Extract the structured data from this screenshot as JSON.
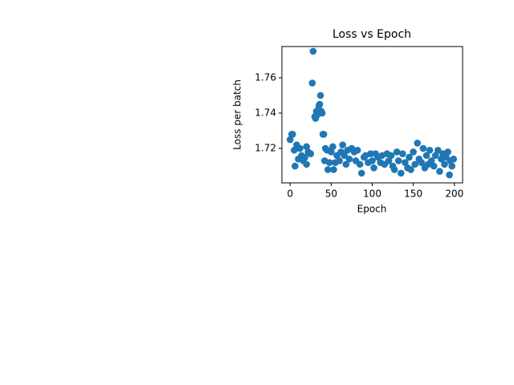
{
  "chart_data": {
    "type": "scatter",
    "title": "Loss vs Epoch",
    "x_label": "Epoch",
    "y_label": "Loss per batch",
    "xlim": [
      -10,
      210
    ],
    "ylim": [
      1.7005,
      1.7777
    ],
    "xticks": [
      0,
      50,
      100,
      150,
      200
    ],
    "yticks": [
      1.72,
      1.74,
      1.76
    ],
    "series": [
      {
        "color": "#1f77b4",
        "x": [
          0,
          2,
          3,
          5,
          6,
          8,
          10,
          12,
          14,
          16,
          18,
          20,
          20,
          22,
          25,
          27,
          28,
          30,
          31,
          32,
          33,
          35,
          36,
          37,
          38,
          39,
          40,
          41,
          42,
          43,
          45,
          46,
          48,
          50,
          52,
          53,
          55,
          57,
          60,
          62,
          64,
          66,
          68,
          70,
          72,
          75,
          78,
          80,
          82,
          85,
          87,
          90,
          92,
          95,
          98,
          100,
          102,
          104,
          107,
          110,
          112,
          115,
          118,
          120,
          123,
          125,
          127,
          130,
          132,
          135,
          137,
          140,
          143,
          145,
          147,
          150,
          152,
          155,
          157,
          160,
          162,
          164,
          166,
          168,
          170,
          172,
          175,
          177,
          180,
          182,
          184,
          186,
          188,
          190,
          192,
          194,
          195,
          197,
          199
        ],
        "values": [
          1.725,
          1.728,
          1.728,
          1.719,
          1.71,
          1.722,
          1.714,
          1.72,
          1.716,
          1.713,
          1.715,
          1.711,
          1.721,
          1.718,
          1.717,
          1.757,
          1.775,
          1.738,
          1.737,
          1.741,
          1.739,
          1.744,
          1.745,
          1.75,
          1.741,
          1.74,
          1.728,
          1.728,
          1.713,
          1.72,
          1.719,
          1.708,
          1.712,
          1.718,
          1.721,
          1.708,
          1.712,
          1.716,
          1.713,
          1.718,
          1.722,
          1.716,
          1.711,
          1.719,
          1.714,
          1.72,
          1.718,
          1.713,
          1.719,
          1.711,
          1.706,
          1.715,
          1.716,
          1.712,
          1.717,
          1.713,
          1.709,
          1.717,
          1.715,
          1.712,
          1.716,
          1.711,
          1.717,
          1.713,
          1.716,
          1.71,
          1.708,
          1.718,
          1.713,
          1.706,
          1.717,
          1.712,
          1.709,
          1.715,
          1.708,
          1.718,
          1.711,
          1.723,
          1.714,
          1.712,
          1.72,
          1.709,
          1.716,
          1.711,
          1.719,
          1.713,
          1.71,
          1.716,
          1.719,
          1.707,
          1.714,
          1.717,
          1.711,
          1.715,
          1.718,
          1.705,
          1.713,
          1.71,
          1.714
        ]
      }
    ]
  }
}
